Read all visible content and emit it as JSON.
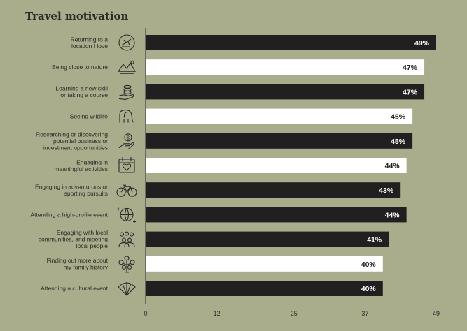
{
  "header": {
    "title": "Travel motivation"
  },
  "chart_data": {
    "type": "bar",
    "orientation": "horizontal",
    "title": "Travel motivation",
    "xlabel": "",
    "ylabel": "",
    "xlim": [
      0,
      49
    ],
    "ticks": [
      0,
      12,
      25,
      37,
      49
    ],
    "tick_labels": [
      "0",
      "12",
      "25",
      "37",
      "49"
    ],
    "grid": false,
    "categories": [
      "Returning to a location I love",
      "Being close to nature",
      "Learning a new skill or taking a course",
      "Seeing wildlife",
      "Researching or discovering potential business or investment opportunities",
      "Engaging in meaningful activities",
      "Engaging in adventurous or sporting pursuits",
      "Attending a high-profile event",
      "Engaging with local communities, and meeting local people",
      "Finding out more about my family history",
      "Attending a cultural event"
    ],
    "label_lines": [
      [
        "Returning to a",
        "location I love"
      ],
      [
        "Being close to nature"
      ],
      [
        "Learning a new skill",
        "or taking a course"
      ],
      [
        "Seeing wildlife"
      ],
      [
        "Researching or discovering",
        "potential business or",
        "investment opportunities"
      ],
      [
        "Engaging in",
        "meaningful activities"
      ],
      [
        "Engaging in adventurous or",
        "sporting pursuits"
      ],
      [
        "Attending a high-profile event"
      ],
      [
        "Engaging with local",
        "communities, and meeting",
        "local people"
      ],
      [
        "Finding out more about",
        "my family history"
      ],
      [
        "Attending a cultural event"
      ]
    ],
    "values": [
      49,
      47,
      47,
      45,
      45,
      44,
      43,
      44,
      41,
      40,
      40
    ],
    "value_labels": [
      "49%",
      "47%",
      "47%",
      "45%",
      "45%",
      "44%",
      "43%",
      "44%",
      "41%",
      "40%",
      "40%"
    ],
    "bar_colors": [
      "#221f20",
      "#ffffff",
      "#221f20",
      "#ffffff",
      "#221f20",
      "#ffffff",
      "#221f20",
      "#221f20",
      "#221f20",
      "#ffffff",
      "#221f20"
    ],
    "icons": [
      "plane-circle-icon",
      "mountains-icon",
      "hand-coins-icon",
      "elephant-icon",
      "hand-dollar-icon",
      "calendar-heart-icon",
      "bicycle-icon",
      "globe-sparkle-icon",
      "people-group-icon",
      "family-tree-icon",
      "fan-icon"
    ]
  },
  "colors": {
    "background": "#a9ad8c",
    "dark_bar": "#221f20",
    "light_bar": "#ffffff",
    "text": "#2a2a2a"
  }
}
